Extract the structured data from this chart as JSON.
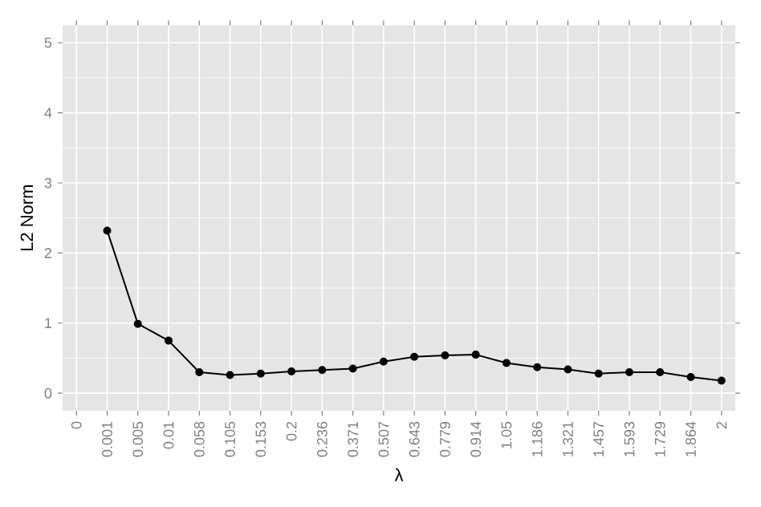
{
  "chart_data": {
    "type": "line",
    "xlabel": "λ",
    "ylabel": "L2 Norm",
    "categories": [
      "0",
      "0.001",
      "0.005",
      "0.01",
      "0.058",
      "0.105",
      "0.153",
      "0.2",
      "0.236",
      "0.371",
      "0.507",
      "0.643",
      "0.779",
      "0.914",
      "1.05",
      "1.186",
      "1.321",
      "1.457",
      "1.593",
      "1.729",
      "1.864",
      "2"
    ],
    "series": [
      {
        "color": "#000000",
        "values": [
          null,
          2.32,
          0.99,
          0.75,
          0.3,
          0.26,
          0.28,
          0.31,
          0.33,
          0.35,
          0.45,
          0.52,
          0.54,
          0.55,
          0.43,
          0.37,
          0.34,
          0.28,
          0.3,
          0.3,
          0.23,
          0.18
        ]
      }
    ],
    "ylim": [
      -0.25,
      5.25
    ],
    "yticks": [
      0,
      1,
      2,
      3,
      4,
      5
    ],
    "grid": true,
    "marker": "circle",
    "line_style": "solid"
  }
}
